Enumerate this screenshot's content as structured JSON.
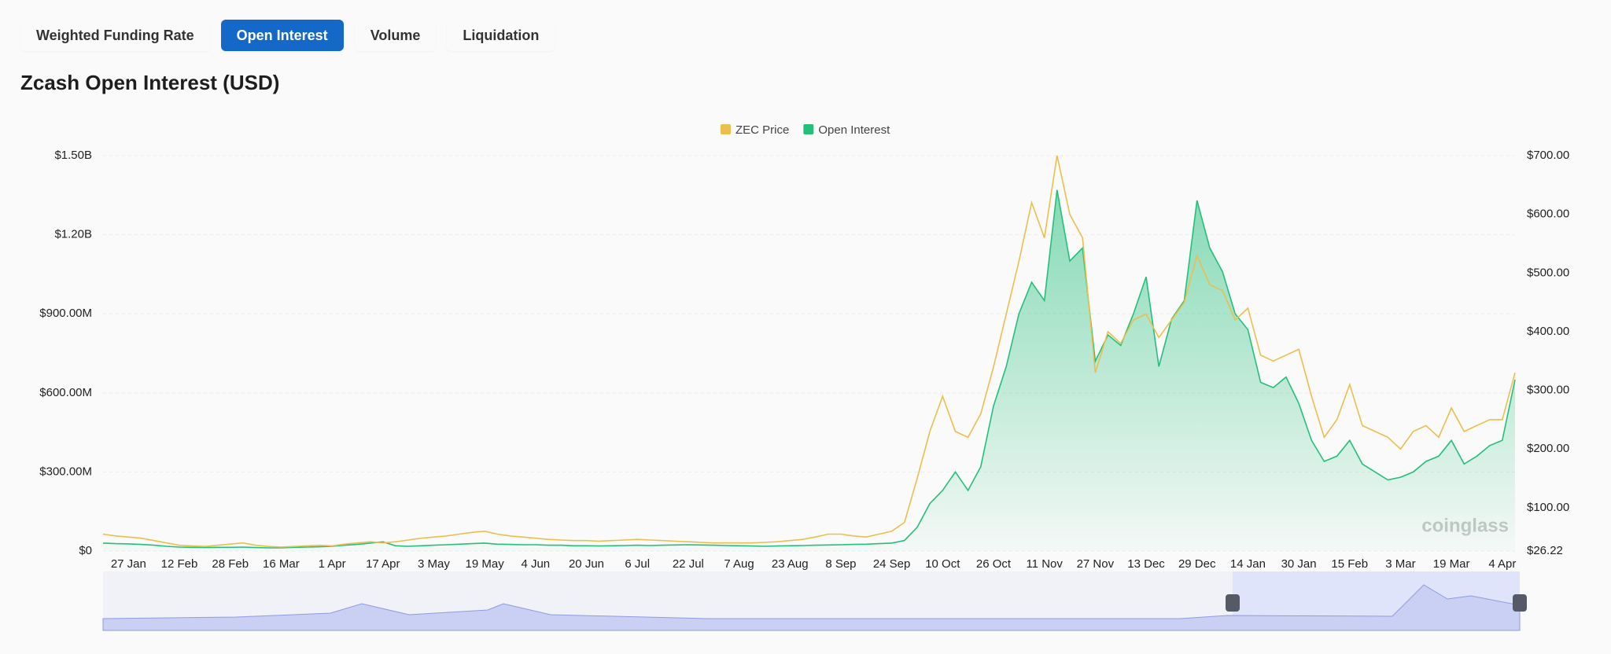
{
  "tabs": [
    "Weighted Funding Rate",
    "Open Interest",
    "Volume",
    "Liquidation"
  ],
  "active_tab": 1,
  "chart_data": {
    "type": "line",
    "title": "Zcash Open Interest (USD)",
    "watermark": "coinglass",
    "categories": [
      null,
      null,
      "27 Jan",
      null,
      null,
      null,
      "12 Feb",
      null,
      null,
      null,
      "28 Feb",
      null,
      null,
      null,
      "16 Mar",
      null,
      null,
      null,
      "1 Apr",
      null,
      null,
      null,
      "17 Apr",
      null,
      null,
      null,
      "3 May",
      null,
      null,
      null,
      "19 May",
      null,
      null,
      null,
      "4 Jun",
      null,
      null,
      null,
      "20 Jun",
      null,
      null,
      null,
      "6 Jul",
      null,
      null,
      null,
      "22 Jul",
      null,
      null,
      null,
      "7 Aug",
      null,
      null,
      null,
      "23 Aug",
      null,
      null,
      null,
      "8 Sep",
      null,
      null,
      null,
      "24 Sep",
      null,
      null,
      null,
      "10 Oct",
      null,
      null,
      null,
      "26 Oct",
      null,
      null,
      null,
      "11 Nov",
      null,
      null,
      null,
      "27 Nov",
      null,
      null,
      null,
      "13 Dec",
      null,
      null,
      null,
      "29 Dec",
      null,
      null,
      null,
      "14 Jan",
      null,
      null,
      null,
      "30 Jan",
      null,
      null,
      null,
      "15 Feb",
      null,
      null,
      null,
      "3 Mar",
      null,
      null,
      null,
      "19 Mar",
      null,
      null,
      null,
      "4 Apr",
      null
    ],
    "series": [
      {
        "name": "ZEC Price",
        "color": "#ebbf4e",
        "axis": "y2",
        "values": [
          55,
          52,
          50,
          48,
          44,
          40,
          36,
          35,
          34,
          36,
          38,
          40,
          36,
          34,
          33,
          34,
          35,
          36,
          35,
          38,
          40,
          42,
          40,
          42,
          45,
          48,
          50,
          52,
          55,
          58,
          60,
          55,
          52,
          50,
          48,
          46,
          45,
          44,
          44,
          43,
          44,
          45,
          46,
          45,
          44,
          43,
          42,
          41,
          40,
          40,
          40,
          40,
          41,
          42,
          44,
          46,
          50,
          55,
          55,
          52,
          50,
          55,
          60,
          75,
          150,
          230,
          290,
          230,
          220,
          260,
          340,
          430,
          520,
          620,
          560,
          700,
          600,
          560,
          330,
          400,
          380,
          420,
          430,
          390,
          420,
          450,
          530,
          480,
          470,
          420,
          440,
          360,
          350,
          360,
          370,
          290,
          220,
          250,
          310,
          240,
          230,
          220,
          200,
          230,
          240,
          220,
          270,
          230,
          240,
          250,
          250,
          330
        ]
      },
      {
        "name": "Open Interest",
        "color": "#25bf7c",
        "area": true,
        "values": [
          30000000.0,
          28000000.0,
          27000000.0,
          25000000.0,
          22000000.0,
          18000000.0,
          15000000.0,
          14000000.0,
          13000000.0,
          14000000.0,
          14000000.0,
          15000000.0,
          13000000.0,
          12000000.0,
          12000000.0,
          14000000.0,
          15000000.0,
          16000000.0,
          18000000.0,
          22000000.0,
          25000000.0,
          30000000.0,
          35000000.0,
          20000000.0,
          18000000.0,
          20000000.0,
          22000000.0,
          24000000.0,
          26000000.0,
          28000000.0,
          30000000.0,
          26000000.0,
          25000000.0,
          24000000.0,
          24000000.0,
          22000000.0,
          22000000.0,
          20000000.0,
          20000000.0,
          19000000.0,
          20000000.0,
          21000000.0,
          22000000.0,
          21000000.0,
          22000000.0,
          23000000.0,
          24000000.0,
          23000000.0,
          22000000.0,
          21000000.0,
          20000000.0,
          19000000.0,
          18000000.0,
          19000000.0,
          20000000.0,
          21000000.0,
          22000000.0,
          23000000.0,
          24000000.0,
          25000000.0,
          26000000.0,
          28000000.0,
          30000000.0,
          40000000.0,
          90000000.0,
          180000000.0,
          230000000.0,
          300000000.0,
          230000000.0,
          320000000.0,
          550000000.0,
          700000000.0,
          900000000.0,
          1020000000.0,
          950000000.0,
          1370000000.0,
          1100000000.0,
          1150000000.0,
          720000000.0,
          820000000.0,
          780000000.0,
          900000000.0,
          1040000000.0,
          700000000.0,
          880000000.0,
          950000000.0,
          1330000000.0,
          1150000000.0,
          1060000000.0,
          900000000.0,
          840000000.0,
          640000000.0,
          620000000.0,
          660000000.0,
          560000000.0,
          420000000.0,
          340000000.0,
          360000000.0,
          420000000.0,
          330000000.0,
          300000000.0,
          270000000.0,
          280000000.0,
          300000000.0,
          340000000.0,
          360000000.0,
          420000000.0,
          330000000.0,
          360000000.0,
          400000000.0,
          420000000.0,
          650000000.0
        ]
      }
    ],
    "ylim": [
      0,
      1500000000
    ],
    "yticks": [
      {
        "value": 0,
        "label": "$0"
      },
      {
        "value": 300000000,
        "label": "$300.00M"
      },
      {
        "value": 600000000,
        "label": "$600.00M"
      },
      {
        "value": 900000000,
        "label": "$900.00M"
      },
      {
        "value": 1200000000,
        "label": "$1.20B"
      },
      {
        "value": 1500000000,
        "label": "$1.50B"
      }
    ],
    "y2lim": [
      26.22,
      700
    ],
    "y2ticks": [
      {
        "value": 26.22,
        "label": "$26.22"
      },
      {
        "value": 100,
        "label": "$100.00"
      },
      {
        "value": 200,
        "label": "$200.00"
      },
      {
        "value": 300,
        "label": "$300.00"
      },
      {
        "value": 400,
        "label": "$400.00"
      },
      {
        "value": 500,
        "label": "$500.00"
      },
      {
        "value": 600,
        "label": "$600.00"
      },
      {
        "value": 700,
        "label": "$700.00"
      }
    ],
    "grid": true,
    "legend": "top"
  }
}
